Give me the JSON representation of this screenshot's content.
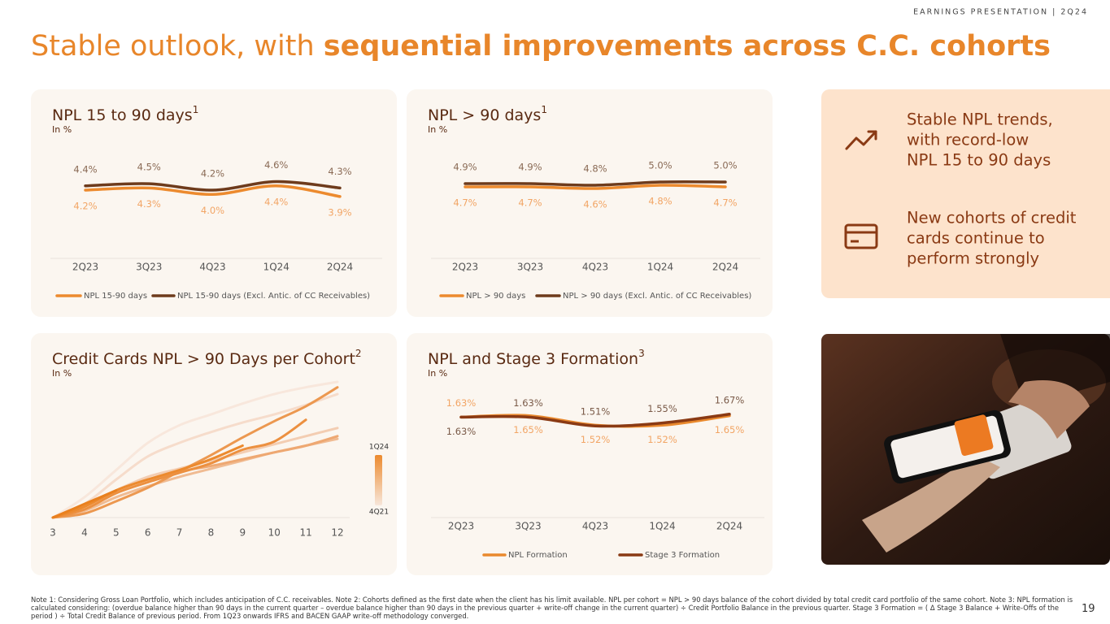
{
  "header": "EARNINGS PRESENTATION | 2Q24",
  "title_parts": [
    "Stable outlook, with ",
    "sequential improvements across C.C. cohorts"
  ],
  "chart_data": [
    {
      "type": "line",
      "title": "NPL 15 to 90 days",
      "title_note": "1",
      "subtitle": "In %",
      "categories": [
        "2Q23",
        "3Q23",
        "4Q23",
        "1Q24",
        "2Q24"
      ],
      "series": [
        {
          "name": "NPL 15-90 days",
          "color": "#ec8a2e",
          "label_color": "#f2a565",
          "values": [
            4.2,
            4.3,
            4.0,
            4.4,
            3.9
          ],
          "value_labels": [
            "4.2%",
            "4.3%",
            "4.0%",
            "4.4%",
            "3.9%"
          ]
        },
        {
          "name": "NPL 15-90 days (Excl. Antic. of CC Receivables)",
          "color": "#6e3b1c",
          "label_color": "#8a6a55",
          "values": [
            4.4,
            4.5,
            4.2,
            4.6,
            4.3
          ],
          "value_labels": [
            "4.4%",
            "4.5%",
            "4.2%",
            "4.6%",
            "4.3%"
          ]
        }
      ],
      "ylim": [
        1,
        7.4
      ]
    },
    {
      "type": "line",
      "title": "NPL > 90 days",
      "title_note": "1",
      "subtitle": "In %",
      "categories": [
        "2Q23",
        "3Q23",
        "4Q23",
        "1Q24",
        "2Q24"
      ],
      "series": [
        {
          "name": "NPL > 90 days",
          "color": "#ec8a2e",
          "label_color": "#f2a565",
          "values": [
            4.7,
            4.7,
            4.6,
            4.8,
            4.7
          ],
          "value_labels": [
            "4.7%",
            "4.7%",
            "4.6%",
            "4.8%",
            "4.7%"
          ]
        },
        {
          "name": "NPL > 90 days (Excl. Antic. of CC Receivables)",
          "color": "#6e3b1c",
          "label_color": "#8a6a55",
          "values": [
            4.9,
            4.9,
            4.8,
            5.0,
            5.0
          ],
          "value_labels": [
            "4.9%",
            "4.9%",
            "4.8%",
            "5.0%",
            "5.0%"
          ]
        }
      ],
      "ylim": [
        0.3,
        8.7
      ]
    },
    {
      "type": "cohort",
      "title": "Credit Cards NPL > 90 Days per Cohort",
      "title_note": "2",
      "subtitle": "In %",
      "x": [
        3,
        4,
        5,
        6,
        7,
        8,
        9,
        10,
        11,
        12
      ],
      "xlim": [
        3,
        12
      ],
      "xticks": [
        3,
        4,
        5,
        6,
        7,
        8,
        9,
        10,
        11,
        12
      ],
      "ylim": [
        0,
        10
      ],
      "colorbar": {
        "top": "1Q24",
        "bottom": "4Q21",
        "colors": [
          "#f7e6da",
          "#ec8a2e"
        ]
      },
      "series": [
        {
          "color": "#f8e7dc",
          "values": [
            0,
            1.5,
            3.5,
            5.5,
            6.8,
            7.6,
            8.4,
            9.1,
            9.6,
            10
          ]
        },
        {
          "color": "#f6dccb",
          "values": [
            0,
            1.0,
            2.8,
            4.5,
            5.5,
            6.3,
            7.0,
            7.6,
            8.3,
            9.1
          ]
        },
        {
          "color": "#f3cdb2",
          "values": [
            0,
            0.8,
            2.0,
            3.0,
            3.6,
            4.2,
            4.8,
            5.4,
            6.0,
            6.6
          ]
        },
        {
          "color": "#f0bb92",
          "values": [
            0,
            0.5,
            1.5,
            2.3,
            3.0,
            3.6,
            4.2,
            4.8,
            5.3,
            5.8
          ]
        },
        {
          "color": "#eea872",
          "values": [
            0,
            0.9,
            2.0,
            2.8,
            3.4,
            3.8,
            4.3,
            4.8,
            5.3,
            6.0
          ]
        },
        {
          "color": "#ec9850",
          "values": [
            0,
            0.3,
            1.2,
            2.2,
            3.4,
            4.6,
            5.9,
            7.1,
            8.2,
            9.6
          ]
        },
        {
          "color": "#ec9040",
          "values": [
            0,
            0.6,
            1.8,
            2.6,
            3.3,
            4.0,
            5.0,
            5.6,
            7.2,
            null
          ]
        },
        {
          "color": "#ec8a2e",
          "values": [
            0,
            0.8,
            2.0,
            2.8,
            3.5,
            4.3,
            5.3,
            null,
            null,
            null
          ]
        },
        {
          "color": "#e9801e",
          "values": [
            0,
            1.0,
            2.0,
            null,
            null,
            null,
            null,
            null,
            null,
            null
          ]
        }
      ]
    },
    {
      "type": "line",
      "title": "NPL and Stage 3 Formation",
      "title_note": "3",
      "subtitle": "In %",
      "categories": [
        "2Q23",
        "3Q23",
        "4Q23",
        "1Q24",
        "2Q24"
      ],
      "series": [
        {
          "name": "NPL Formation",
          "color": "#e9892d",
          "label_color": "#f2a565",
          "values": [
            1.63,
            1.65,
            1.52,
            1.52,
            1.65
          ],
          "value_labels": [
            "1.63%",
            "1.65%",
            "1.52%",
            "1.52%",
            "1.65%"
          ]
        },
        {
          "name": "Stage 3 Formation",
          "color": "#8a3a14",
          "label_color": "#7a5a48",
          "values": [
            1.63,
            1.63,
            1.51,
            1.55,
            1.67
          ],
          "value_labels": [
            "1.63%",
            "1.63%",
            "1.51%",
            "1.55%",
            "1.67%"
          ]
        }
      ],
      "ylim": [
        0.26,
        2.0
      ]
    }
  ],
  "highlights": [
    [
      "Stable NPL trends,",
      "with record-low",
      "NPL 15 to 90 days"
    ],
    [
      "New cohorts of credit",
      "cards continue to",
      "perform strongly"
    ]
  ],
  "footnote": "Note 1: Considering Gross Loan Portfolio, which includes anticipation of C.C. receivables.  Note 2: Cohorts defined as the first date when the client has his limit available. NPL per cohort = NPL > 90 days balance of the cohort divided by total credit card portfolio of the same cohort. Note 3: NPL formation is calculated considering: (overdue balance higher than 90 days in the current quarter – overdue balance higher than 90 days in the previous quarter + write-off change in the current quarter) ÷ Credit Portfolio Balance in the previous quarter. Stage 3 Formation = ( Δ Stage 3 Balance + Write-Offs of the period ) ÷ Total Credit Balance of previous period. From 1Q23 onwards IFRS and BACEN GAAP write-off methodology converged.",
  "page_number": "19"
}
